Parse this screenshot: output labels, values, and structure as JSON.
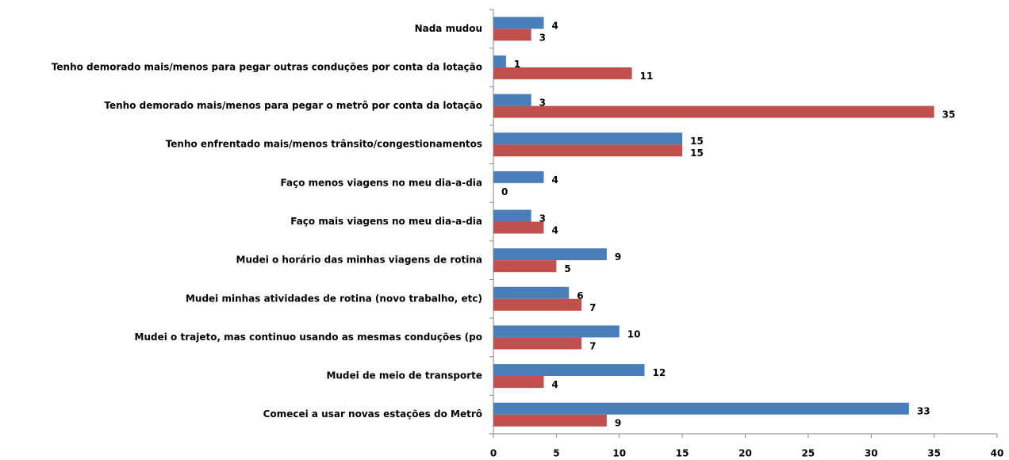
{
  "chart_data": {
    "type": "bar",
    "orientation": "horizontal",
    "categories": [
      "Nada mudou",
      "Tenho demorado mais/menos para pegar outras conduções por conta da lotação",
      "Tenho demorado mais/menos para pegar o metrô por conta da lotação",
      "Tenho enfrentado mais/menos trânsito/congestionamentos",
      "Faço menos viagens no meu dia-a-dia",
      "Faço mais viagens no meu dia-a-dia",
      "Mudei o horário das minhas viagens de rotina",
      "Mudei minhas atividades de rotina (novo trabalho, etc)",
      "Mudei o trajeto, mas continuo usando as mesmas conduções (po",
      "Mudei de meio de transporte",
      "Comecei a usar novas estações do Metrô"
    ],
    "series": [
      {
        "color": "#4a7ebb",
        "values": [
          4,
          1,
          3,
          15,
          4,
          3,
          9,
          6,
          10,
          12,
          33
        ]
      },
      {
        "color": "#c0504d",
        "values": [
          3,
          11,
          35,
          15,
          0,
          4,
          5,
          7,
          7,
          4,
          9
        ]
      }
    ],
    "xlim": [
      0,
      40
    ],
    "xticks": [
      0,
      5,
      10,
      15,
      20,
      25,
      30,
      35,
      40
    ],
    "grid": false
  }
}
